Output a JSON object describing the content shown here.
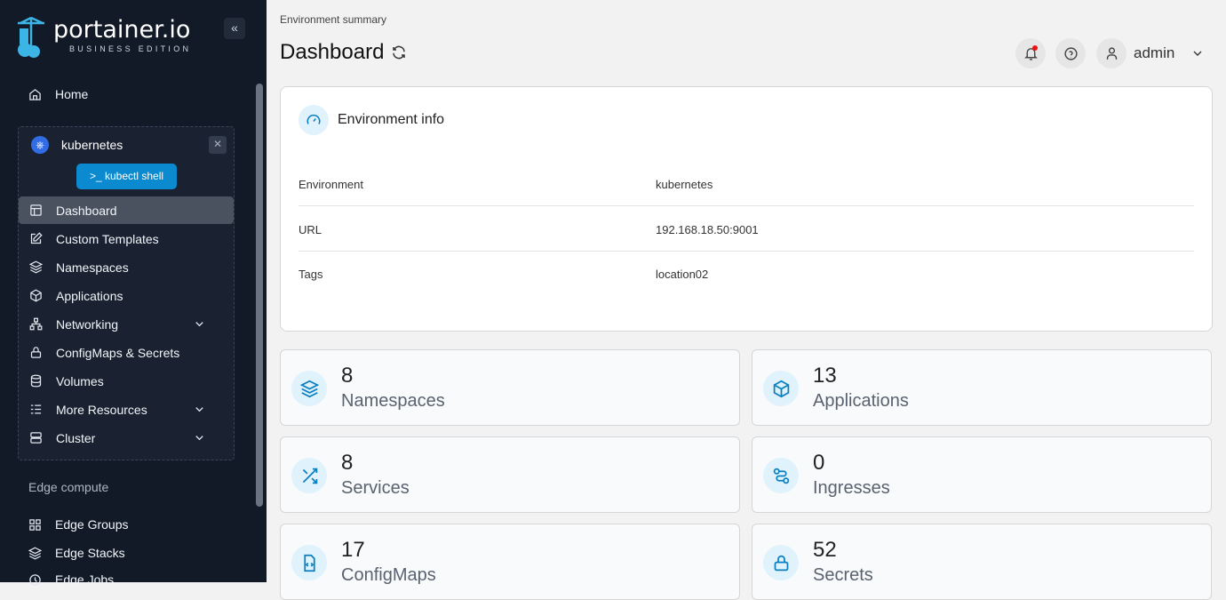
{
  "brand": {
    "name": "portainer.io",
    "edition": "BUSINESS EDITION"
  },
  "sidebar": {
    "home": "Home",
    "environment": {
      "name": "kubernetes",
      "shell_button": "kubectl shell"
    },
    "items": [
      {
        "label": "Dashboard",
        "icon": "layout-icon",
        "active": true
      },
      {
        "label": "Custom Templates",
        "icon": "edit-icon"
      },
      {
        "label": "Namespaces",
        "icon": "layers-icon"
      },
      {
        "label": "Applications",
        "icon": "box-icon"
      },
      {
        "label": "Networking",
        "icon": "network-icon",
        "expandable": true
      },
      {
        "label": "ConfigMaps & Secrets",
        "icon": "lock-icon"
      },
      {
        "label": "Volumes",
        "icon": "database-icon"
      },
      {
        "label": "More Resources",
        "icon": "list-icon",
        "expandable": true
      },
      {
        "label": "Cluster",
        "icon": "server-icon",
        "expandable": true
      }
    ],
    "edge_section": "Edge compute",
    "edge_items": [
      {
        "label": "Edge Groups",
        "icon": "grid-icon"
      },
      {
        "label": "Edge Stacks",
        "icon": "layers-icon"
      },
      {
        "label": "Edge Jobs",
        "icon": "clock-icon"
      }
    ]
  },
  "header": {
    "breadcrumb": "Environment summary",
    "title": "Dashboard",
    "user": "admin"
  },
  "env_info": {
    "title": "Environment info",
    "rows": [
      {
        "key": "Environment",
        "value": "kubernetes"
      },
      {
        "key": "URL",
        "value": "192.168.18.50:9001"
      },
      {
        "key": "Tags",
        "value": "location02"
      }
    ]
  },
  "stats": [
    {
      "value": "8",
      "label": "Namespaces",
      "icon": "layers-icon"
    },
    {
      "value": "13",
      "label": "Applications",
      "icon": "box-icon"
    },
    {
      "value": "8",
      "label": "Services",
      "icon": "shuffle-icon"
    },
    {
      "value": "0",
      "label": "Ingresses",
      "icon": "route-icon"
    },
    {
      "value": "17",
      "label": "ConfigMaps",
      "icon": "file-code-icon"
    },
    {
      "value": "52",
      "label": "Secrets",
      "icon": "lock-icon"
    }
  ],
  "colors": {
    "accent": "#0b8ad0",
    "sidebar": "#121a28"
  }
}
